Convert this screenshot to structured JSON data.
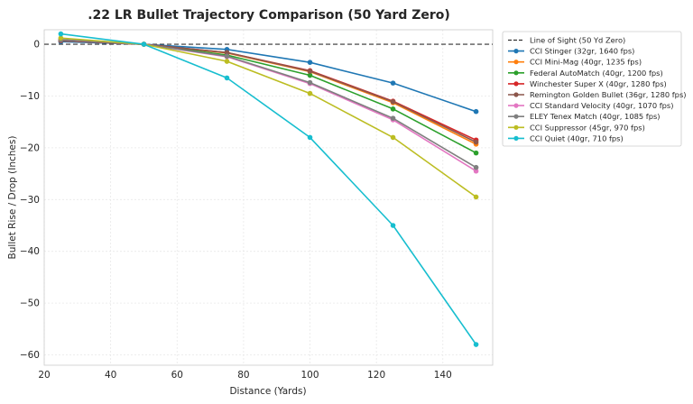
{
  "chart_data": {
    "type": "line",
    "title": ".22 LR Bullet Trajectory Comparison (50 Yard Zero)",
    "xlabel": "Distance (Yards)",
    "ylabel": "Bullet Rise / Drop (Inches)",
    "xlim": [
      20,
      155
    ],
    "ylim": [
      -62,
      2.8
    ],
    "xticks": [
      20,
      40,
      60,
      80,
      100,
      120,
      140
    ],
    "xtick_labels": [
      "20",
      "40",
      "60",
      "80",
      "100",
      "120",
      "140"
    ],
    "yticks": [
      0,
      -10,
      -20,
      -30,
      -40,
      -50,
      -60
    ],
    "ytick_labels": [
      "0",
      "−10",
      "−20",
      "−30",
      "−40",
      "−50",
      "−60"
    ],
    "grid": true,
    "legend_position": "outside-right-top",
    "x": [
      25,
      50,
      75,
      100,
      125,
      150
    ],
    "reference_line": {
      "name": "Line of Sight (50 Yd Zero)",
      "y": 0,
      "color": "#333333",
      "style": "dashed"
    },
    "series": [
      {
        "name": "CCI Stinger (32gr, 1640 fps)",
        "color": "#1f77b4",
        "values": [
          0.5,
          0,
          -1.0,
          -3.5,
          -7.5,
          -13.0
        ]
      },
      {
        "name": "CCI Mini-Mag (40gr, 1235 fps)",
        "color": "#ff7f0e",
        "values": [
          0.7,
          0,
          -1.7,
          -5.3,
          -11.3,
          -19.3
        ]
      },
      {
        "name": "Federal AutoMatch (40gr, 1200 fps)",
        "color": "#2ca02c",
        "values": [
          0.8,
          0,
          -2.1,
          -6.0,
          -12.5,
          -21.0
        ]
      },
      {
        "name": "Winchester Super X (40gr, 1280 fps)",
        "color": "#d62728",
        "values": [
          0.7,
          0,
          -1.6,
          -5.1,
          -11.0,
          -18.5
        ]
      },
      {
        "name": "Remington Golden Bullet (36gr, 1280 fps)",
        "color": "#8c564b",
        "values": [
          0.7,
          0,
          -1.6,
          -5.2,
          -11.1,
          -18.9
        ]
      },
      {
        "name": "CCI Standard Velocity (40gr, 1070 fps)",
        "color": "#e377c2",
        "values": [
          0.9,
          0,
          -2.4,
          -7.6,
          -14.6,
          -24.5
        ]
      },
      {
        "name": "ELEY Tenex Match (40gr, 1085 fps)",
        "color": "#7f7f7f",
        "values": [
          0.9,
          0,
          -2.3,
          -7.4,
          -14.3,
          -23.8
        ]
      },
      {
        "name": "CCI Suppressor (45gr, 970 fps)",
        "color": "#bcbd22",
        "values": [
          1.2,
          0,
          -3.3,
          -9.5,
          -18.0,
          -29.5
        ]
      },
      {
        "name": "CCI Quiet (40gr, 710 fps)",
        "color": "#17becf",
        "values": [
          2.0,
          0,
          -6.5,
          -18.0,
          -35.0,
          -58.0
        ]
      }
    ]
  }
}
